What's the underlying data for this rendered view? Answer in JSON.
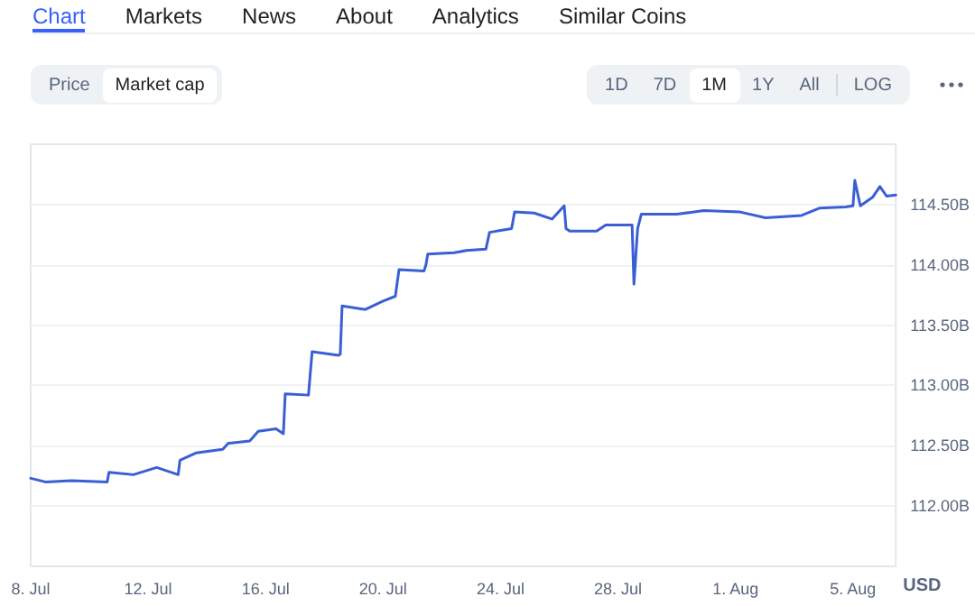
{
  "chart_data": {
    "type": "line",
    "ylabel": "USD",
    "annotations": [
      "Chart",
      "Markets",
      "News",
      "About",
      "Analytics",
      "Similar Coins",
      "Price",
      "Market cap",
      "1D",
      "7D",
      "1M",
      "1Y",
      "All",
      "LOG"
    ],
    "x": [
      "--07-08T00:00",
      "--07-08T12:00",
      "--07-09T09:30",
      "--07-10T14:30",
      "--07-10T16:00",
      "--07-11T12:00",
      "--07-12T07:00",
      "--07-13T00:30",
      "--07-13T02:00",
      "--07-13T15:00",
      "--07-14T13:00",
      "--07-14T17:30",
      "--07-15T11:00",
      "--07-15T18:00",
      "--07-16T08:30",
      "--07-16T14:30",
      "--07-16T16:00",
      "--07-17T11:00",
      "--07-17T14:00",
      "--07-18T11:30",
      "--07-18T13:00",
      "--07-18T14:30",
      "--07-19T09:30",
      "--07-20T00:00",
      "--07-20T10:00",
      "--07-20T13:00",
      "--07-21T09:30",
      "--07-21T11:00",
      "--07-21T12:30",
      "--07-22T10:00",
      "--07-22T20:00",
      "--07-23T12:00",
      "--07-23T15:00",
      "--07-24T09:00",
      "--07-24T11:30",
      "--07-25T03:30",
      "--07-25T18:00",
      "--07-26T04:00",
      "--07-26T05:30",
      "--07-26T08:30",
      "--07-27T06:30",
      "--07-27T14:00",
      "--07-28T11:30",
      "--07-28T13:00",
      "--07-28T16:00",
      "--07-28T19:00",
      "--07-30T00:00",
      "--07-30T22:00",
      "--08-01T03:00",
      "--08-02T00:30",
      "--08-03T06:00",
      "--08-03T20:30",
      "--08-04T18:00",
      "--08-05T00:00",
      "--08-05T01:30",
      "--08-05T06:00",
      "--08-05T16:00",
      "--08-05T22:00",
      "--08-06T03:30",
      "--08-06T11:00"
    ],
    "series": [
      {
        "color": "#3a5fd4",
        "values": [
          112.23,
          112.2,
          112.21,
          112.2,
          112.28,
          112.26,
          112.32,
          112.26,
          112.38,
          112.44,
          112.47,
          112.52,
          112.54,
          112.62,
          112.64,
          112.6,
          112.93,
          112.92,
          113.28,
          113.25,
          113.26,
          113.66,
          113.63,
          113.7,
          113.74,
          113.96,
          113.95,
          114.0,
          114.09,
          114.1,
          114.12,
          114.13,
          114.27,
          114.3,
          114.44,
          114.43,
          114.38,
          114.49,
          114.3,
          114.28,
          114.28,
          114.33,
          114.33,
          113.84,
          114.3,
          114.42,
          114.42,
          114.45,
          114.44,
          114.39,
          114.41,
          114.47,
          114.48,
          114.49,
          114.7,
          114.49,
          114.56,
          114.65,
          114.57,
          114.58
        ]
      }
    ],
    "xlim": [
      "--07-08T00:00",
      "--08-06T11:00"
    ],
    "xticks": [
      {
        "value": "--07-08",
        "label": "8. Jul"
      },
      {
        "value": "--07-12",
        "label": "12. Jul"
      },
      {
        "value": "--07-16",
        "label": "16. Jul"
      },
      {
        "value": "--07-20",
        "label": "20. Jul"
      },
      {
        "value": "--07-24",
        "label": "24. Jul"
      },
      {
        "value": "--07-28",
        "label": "28. Jul"
      },
      {
        "value": "--08-01",
        "label": "1. Aug"
      },
      {
        "value": "--08-05",
        "label": "5. Aug"
      }
    ],
    "ylim": [
      111.5,
      115
    ],
    "yticks": [
      {
        "value": 112,
        "label": "112.00B"
      },
      {
        "value": 112.5,
        "label": "112.50B"
      },
      {
        "value": 113,
        "label": "113.00B"
      },
      {
        "value": 113.5,
        "label": "113.50B"
      },
      {
        "value": 114,
        "label": "114.00B"
      },
      {
        "value": 114.5,
        "label": "114.50B"
      }
    ],
    "grid": "y",
    "marker": "none",
    "line_style": "solid"
  }
}
